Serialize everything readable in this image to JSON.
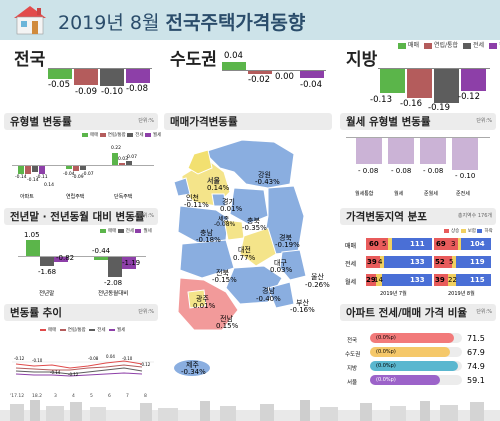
{
  "header": {
    "title_part1": "2019년 8월",
    "title_part2": "전국주택가격동향"
  },
  "colors": {
    "green": "#5bb54a",
    "red": "#b45c5c",
    "dark": "#5d5d5d",
    "purple": "#8d3fa8",
    "light_purple": "#cbb3d6",
    "header_bar": "#cde3e9"
  },
  "legend_top": [
    "매매",
    "연립/통합",
    "전세",
    "월세"
  ],
  "regions": {
    "national": {
      "label": "전국",
      "values": [
        "-0.05",
        "-0.09",
        "-0.10",
        "-0.08"
      ]
    },
    "capital": {
      "label": "수도권",
      "values": [
        "0.04",
        "-0.02",
        "0.00",
        "-0.04"
      ]
    },
    "provinces": {
      "label": "지방",
      "values": [
        "-0.13",
        "-0.16",
        "-0.19",
        "-0.12"
      ]
    }
  },
  "type_change": {
    "title": "유형별 변동률",
    "unit": "단위:%",
    "legend": [
      "매매",
      "연립/통합",
      "전세",
      "월세"
    ],
    "groups": [
      {
        "label": "아파트",
        "values": [
          "-0.14",
          "-0.14",
          "-0.11",
          "0.14"
        ]
      },
      {
        "label": "연립주택",
        "values": [
          "-0.04",
          "-0.09",
          "-0.07",
          ""
        ]
      },
      {
        "label": "단독주택",
        "values": [
          "0.22",
          "0.03",
          "0.07",
          ""
        ]
      }
    ]
  },
  "year_change": {
    "title": "전년말 · 전년동월 대비 변동률",
    "unit": "단위:%",
    "legend": [
      "매매",
      "전세",
      "월세"
    ],
    "groups": [
      {
        "label": "전년말",
        "values": [
          "1.05",
          "-1.68",
          "-0.82"
        ]
      },
      {
        "label": "전년동월대비",
        "values": [
          "-0.44",
          "-2.08",
          "-1.19"
        ]
      }
    ]
  },
  "trend": {
    "title": "변동률 추이",
    "unit": "단위:%",
    "legend": [
      "매매",
      "연립/통합",
      "전세",
      "월세"
    ],
    "x_labels": [
      "'17.12",
      "18.2",
      "3",
      "4",
      "5",
      "6",
      "7",
      "8"
    ],
    "value_labels": [
      "-0.12",
      "-0.10",
      "-0.14",
      "-0.12",
      "-0.08",
      "0.04",
      "-0.10",
      "-0.12"
    ]
  },
  "map": {
    "title": "매매가격변동률",
    "regions": [
      {
        "name": "서울",
        "value": "0.14%"
      },
      {
        "name": "인천",
        "value": "-0.11%"
      },
      {
        "name": "경기",
        "value": "0.01%"
      },
      {
        "name": "강원",
        "value": "-0.43%"
      },
      {
        "name": "세종",
        "value": "-0.08%"
      },
      {
        "name": "충북",
        "value": "-0.35%"
      },
      {
        "name": "충남",
        "value": "-0.18%"
      },
      {
        "name": "대전",
        "value": "0.77%"
      },
      {
        "name": "경북",
        "value": "-0.19%"
      },
      {
        "name": "전북",
        "value": "-0.15%"
      },
      {
        "name": "대구",
        "value": "0.03%"
      },
      {
        "name": "울산",
        "value": "-0.26%"
      },
      {
        "name": "광주",
        "value": "0.01%"
      },
      {
        "name": "경남",
        "value": "-0.40%"
      },
      {
        "name": "부산",
        "value": "-0.16%"
      },
      {
        "name": "전남",
        "value": "0.15%"
      },
      {
        "name": "제주",
        "value": "-0.34%"
      }
    ]
  },
  "monthly_rent": {
    "title": "월세 유형별 변동률",
    "unit": "단위:%",
    "items": [
      {
        "label": "월세통합",
        "value": "- 0.08"
      },
      {
        "label": "월세",
        "value": "- 0.08"
      },
      {
        "label": "준월세",
        "value": "- 0.08"
      },
      {
        "label": "준전세",
        "value": "- 0.10"
      }
    ]
  },
  "distribution": {
    "title": "가격변동지역 분포",
    "unit": "총지역수 176개",
    "legend": [
      "상승",
      "보합",
      "하락"
    ],
    "rows": [
      {
        "label": "매매",
        "left": [
          "60",
          "5",
          "111"
        ],
        "right": [
          "69",
          "3",
          "104"
        ]
      },
      {
        "label": "전세",
        "left": [
          "39",
          "4",
          "133"
        ],
        "right": [
          "52",
          "5",
          "119"
        ]
      },
      {
        "label": "월세",
        "left": [
          "29",
          "14",
          "133"
        ],
        "right": [
          "39",
          "22",
          "115"
        ]
      }
    ],
    "col_labels": [
      "2019년 7월",
      "2019년 8월"
    ]
  },
  "ratio": {
    "title": "아파트 전세/매매 가격 비율",
    "unit": "단위:%",
    "rows": [
      {
        "label": "전국",
        "sub": "(0.0%p)",
        "value": "71.5"
      },
      {
        "label": "수도권",
        "sub": "(0.0%p)",
        "value": "67.9"
      },
      {
        "label": "지방",
        "sub": "(0.0%p)",
        "value": "74.9"
      },
      {
        "label": "서울",
        "sub": "(0.0%p)",
        "value": "59.1"
      }
    ]
  }
}
